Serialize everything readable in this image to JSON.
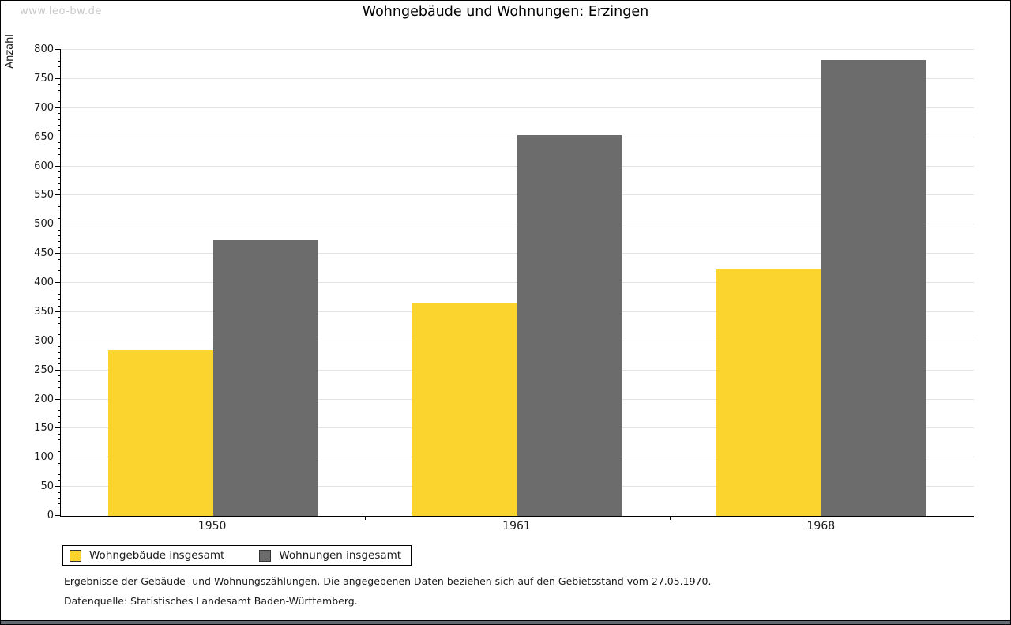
{
  "watermark": "www.leo-bw.de",
  "title": "Wohngebäude und Wohnungen: Erzingen",
  "footnotes": {
    "line1": "Ergebnisse der Gebäude- und Wohnungszählungen. Die angegebenen Daten beziehen sich auf den Gebietsstand vom 27.05.1970.",
    "line2": "Datenquelle: Statistisches Landesamt Baden-Württemberg."
  },
  "colors": {
    "bar_yellow": "#fcd42e",
    "bar_gray": "#6c6c6c",
    "gridline": "#e3e3e3",
    "axis": "#000000",
    "watermark": "#c9c9c9",
    "bottom_strip": "#636973"
  },
  "chart_data": {
    "type": "bar",
    "title": "Wohngebäude und Wohnungen: Erzingen",
    "categories": [
      "1950",
      "1961",
      "1968"
    ],
    "series": [
      {
        "name": "Wohngebäude insgesamt",
        "color": "#fcd42e",
        "values": [
          285,
          365,
          423
        ]
      },
      {
        "name": "Wohnungen insgesamt",
        "color": "#6c6c6c",
        "values": [
          473,
          654,
          782
        ]
      }
    ],
    "xlabel": "",
    "ylabel": "Anzahl",
    "ylim": [
      0,
      800
    ],
    "ytick_step": 50,
    "ytick_minor_step": 10,
    "grid": true,
    "legend_position": "bottom-left"
  }
}
